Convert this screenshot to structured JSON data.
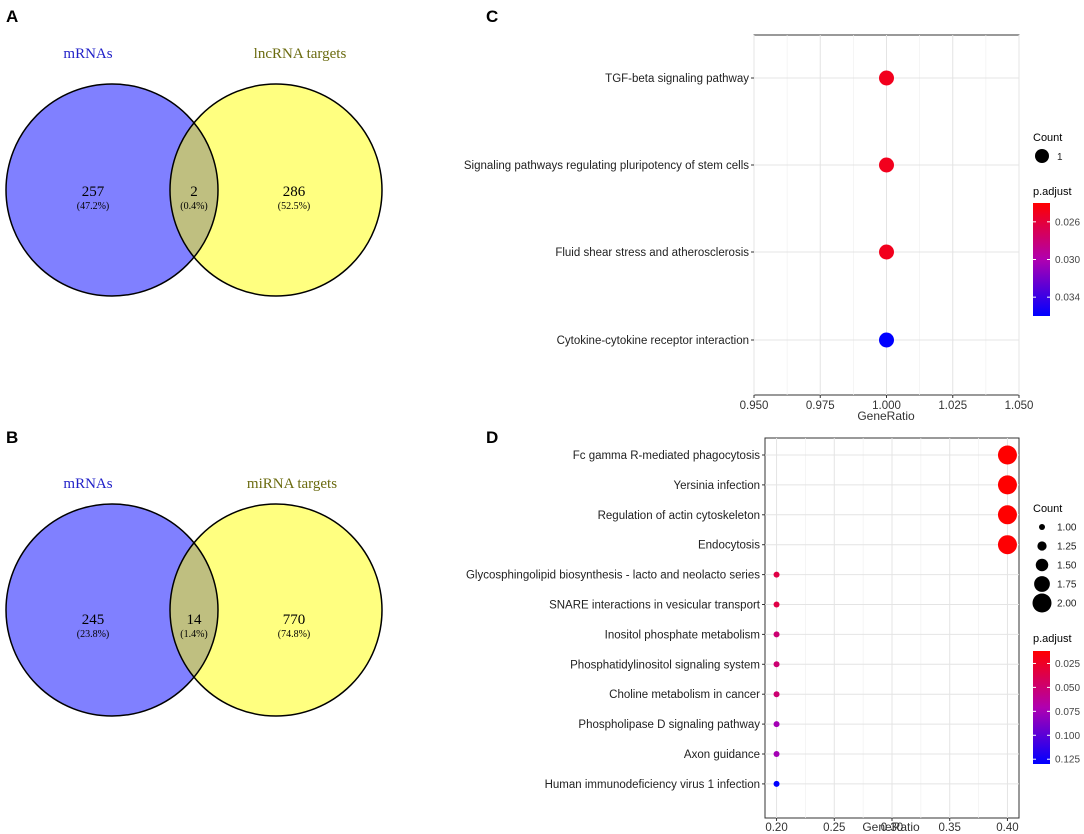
{
  "chart_data": [
    {
      "panel": "A",
      "type": "venn",
      "sets": [
        {
          "name": "mRNAs",
          "color": "#8080ff",
          "label_color": "#1f1fc8"
        },
        {
          "name": "lncRNA targets",
          "color": "#ffff80",
          "label_color": "#6b6b10"
        }
      ],
      "regions": [
        {
          "count": "257",
          "percent": "(47.2%)"
        },
        {
          "count": "2",
          "percent": "(0.4%)"
        },
        {
          "count": "286",
          "percent": "(52.5%)"
        }
      ],
      "overlap_color": "#bfbf80"
    },
    {
      "panel": "B",
      "type": "venn",
      "sets": [
        {
          "name": "mRNAs",
          "color": "#8080ff",
          "label_color": "#1f1fc8"
        },
        {
          "name": "miRNA targets",
          "color": "#ffff80",
          "label_color": "#6b6b10"
        }
      ],
      "regions": [
        {
          "count": "245",
          "percent": "(23.8%)"
        },
        {
          "count": "14",
          "percent": "(1.4%)"
        },
        {
          "count": "770",
          "percent": "(74.8%)"
        }
      ],
      "overlap_color": "#bfbf80"
    },
    {
      "panel": "C",
      "type": "scatter",
      "xlabel": "GeneRatio",
      "xlim": [
        0.95,
        1.05
      ],
      "xticks": [
        "0.950",
        "0.975",
        "1.000",
        "1.025",
        "1.050"
      ],
      "xtick_values": [
        0.95,
        0.975,
        1.0,
        1.025,
        1.05
      ],
      "categories": [
        "TGF-beta signaling pathway",
        "Signaling pathways regulating pluripotency of stem cells",
        "Fluid shear stress and atherosclerosis",
        "Cytokine-cytokine receptor interaction"
      ],
      "points": [
        {
          "x": 1.0,
          "count": 1,
          "p_adjust": 0.025
        },
        {
          "x": 1.0,
          "count": 1,
          "p_adjust": 0.025
        },
        {
          "x": 1.0,
          "count": 1,
          "p_adjust": 0.025
        },
        {
          "x": 1.0,
          "count": 1,
          "p_adjust": 0.036
        }
      ],
      "size_legend": {
        "title": "Count",
        "values": [
          1
        ],
        "labels": [
          "1"
        ]
      },
      "color_legend": {
        "title": "p.adjust",
        "range": [
          0.024,
          0.036
        ],
        "high_color": "#ff0000",
        "low_color": "#0000ff",
        "ticks": [
          0.026,
          0.03,
          0.034
        ],
        "labels": [
          "0.026",
          "0.030",
          "0.034"
        ]
      }
    },
    {
      "panel": "D",
      "type": "scatter",
      "xlabel": "GeneRatio",
      "xlim": [
        0.19,
        0.41
      ],
      "xticks": [
        "0.20",
        "0.25",
        "0.30",
        "0.35",
        "0.40"
      ],
      "xtick_values": [
        0.2,
        0.25,
        0.3,
        0.35,
        0.4
      ],
      "categories": [
        "Fc gamma R-mediated phagocytosis",
        "Yersinia infection",
        "Regulation of actin cytoskeleton",
        "Endocytosis",
        "Glycosphingolipid biosynthesis - lacto and neolacto series",
        "SNARE interactions in vesicular transport",
        "Inositol phosphate metabolism",
        "Phosphatidylinositol signaling system",
        "Choline metabolism in cancer",
        "Phospholipase D signaling pathway",
        "Axon guidance",
        "Human immunodeficiency virus 1 infection"
      ],
      "points": [
        {
          "x": 0.4,
          "count": 2,
          "p_adjust": 0.012
        },
        {
          "x": 0.4,
          "count": 2,
          "p_adjust": 0.012
        },
        {
          "x": 0.4,
          "count": 2,
          "p_adjust": 0.012
        },
        {
          "x": 0.4,
          "count": 2,
          "p_adjust": 0.013
        },
        {
          "x": 0.2,
          "count": 1,
          "p_adjust": 0.035
        },
        {
          "x": 0.2,
          "count": 1,
          "p_adjust": 0.035
        },
        {
          "x": 0.2,
          "count": 1,
          "p_adjust": 0.05
        },
        {
          "x": 0.2,
          "count": 1,
          "p_adjust": 0.05
        },
        {
          "x": 0.2,
          "count": 1,
          "p_adjust": 0.05
        },
        {
          "x": 0.2,
          "count": 1,
          "p_adjust": 0.075
        },
        {
          "x": 0.2,
          "count": 1,
          "p_adjust": 0.075
        },
        {
          "x": 0.2,
          "count": 1,
          "p_adjust": 0.13
        }
      ],
      "size_legend": {
        "title": "Count",
        "values": [
          1,
          1.25,
          1.5,
          1.75,
          2
        ],
        "labels": [
          "1.00",
          "1.25",
          "1.50",
          "1.75",
          "2.00"
        ]
      },
      "color_legend": {
        "title": "p.adjust",
        "range": [
          0.012,
          0.13
        ],
        "high_color": "#ff0000",
        "low_color": "#0000ff",
        "ticks": [
          0.025,
          0.05,
          0.075,
          0.1,
          0.125
        ],
        "labels": [
          "0.025",
          "0.050",
          "0.075",
          "0.100",
          "0.125"
        ]
      }
    }
  ],
  "panel_labels": [
    "A",
    "B",
    "C",
    "D"
  ]
}
